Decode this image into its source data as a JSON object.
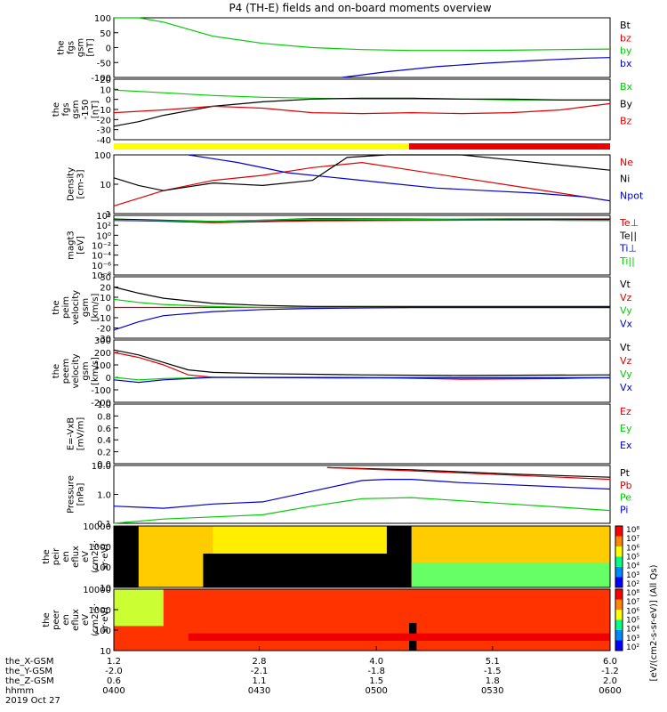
{
  "title": "P4 (TH-E) fields and on-board moments overview",
  "colors": {
    "black": "#000000",
    "red": "#e00000",
    "green": "#00cc00",
    "blue": "#0000cc",
    "yellow": "#ffff00",
    "bar_red": "#ee0000"
  },
  "chart_data": [
    {
      "type": "line",
      "id": "fgs",
      "ylabel": [
        "the",
        "fgs",
        "gsm",
        "[nT]"
      ],
      "yticks": [
        "100",
        "50",
        "0",
        "-50",
        "-100"
      ],
      "ylim": [
        -100,
        110
      ],
      "series": [
        {
          "name": "Bt",
          "color": "#000000",
          "x": [],
          "y": []
        },
        {
          "name": "bz",
          "color": "#e00000",
          "x": [],
          "y": []
        },
        {
          "name": "by",
          "color": "#00cc00",
          "x": [
            0,
            0.05,
            0.1,
            0.15,
            0.2,
            0.3,
            0.4,
            0.5,
            0.6,
            0.7,
            0.8,
            0.9,
            1.0
          ],
          "y": [
            170,
            120,
            95,
            70,
            45,
            20,
            5,
            -2,
            -5,
            -5,
            -4,
            -2,
            0
          ]
        },
        {
          "name": "bx",
          "color": "#0000cc",
          "x": [
            0.46,
            0.55,
            0.65,
            0.75,
            0.85,
            0.95,
            1.0
          ],
          "y": [
            -100,
            -80,
            -62,
            -50,
            -40,
            -32,
            -30
          ]
        }
      ]
    },
    {
      "type": "line",
      "id": "fgs_gsm",
      "ylabel": [
        "the",
        "fgs",
        "gsm",
        "-150",
        "[nT]"
      ],
      "yticks": [
        "20",
        "10",
        "0",
        "-10",
        "-20",
        "-30",
        "-40"
      ],
      "ylim": [
        -45,
        22
      ],
      "series": [
        {
          "name": "Bx",
          "color": "#00cc00",
          "x": [
            0,
            0.1,
            0.2,
            0.3,
            0.4,
            0.5,
            0.6,
            0.7,
            0.8,
            0.9,
            1.0
          ],
          "y": [
            10,
            7,
            4,
            2,
            1,
            0,
            0,
            0,
            -1,
            -1,
            -1
          ]
        },
        {
          "name": "By",
          "color": "#000000",
          "x": [
            0,
            0.05,
            0.1,
            0.2,
            0.3,
            0.4,
            0.5,
            0.6,
            0.7,
            0.8,
            0.9,
            1.0
          ],
          "y": [
            -30,
            -25,
            -18,
            -8,
            -3,
            0,
            1,
            1,
            0,
            0,
            -1,
            -1
          ]
        },
        {
          "name": "Bz",
          "color": "#e00000",
          "x": [
            0,
            0.1,
            0.2,
            0.3,
            0.4,
            0.5,
            0.6,
            0.7,
            0.8,
            0.9,
            1.0
          ],
          "y": [
            -15,
            -12,
            -8,
            -10,
            -15,
            -16,
            -15,
            -16,
            -15,
            -12,
            -5
          ]
        }
      ]
    },
    {
      "type": "line",
      "id": "density",
      "log": true,
      "ylabel": [
        "Density",
        "[cm-3]"
      ],
      "yticks": [
        "100",
        "10",
        "1"
      ],
      "ylim_log": [
        0,
        2.3
      ],
      "series": [
        {
          "name": "Ne",
          "color": "#e00000",
          "x": [
            0,
            0.05,
            0.1,
            0.2,
            0.3,
            0.4,
            0.5,
            0.6,
            0.7,
            0.8,
            0.9,
            1.0
          ],
          "y": [
            0.3,
            0.6,
            0.9,
            1.3,
            1.5,
            1.8,
            2.0,
            1.7,
            1.4,
            1.1,
            0.8,
            0.5
          ]
        },
        {
          "name": "Ni",
          "color": "#000000",
          "x": [
            0,
            0.05,
            0.1,
            0.2,
            0.3,
            0.4,
            0.47,
            0.55,
            0.6,
            0.7,
            0.8,
            0.9,
            1.0
          ],
          "y": [
            1.4,
            1.1,
            0.9,
            1.2,
            1.1,
            1.3,
            2.2,
            2.6,
            2.5,
            2.3,
            2.1,
            1.9,
            1.7
          ]
        },
        {
          "name": "Npot",
          "color": "#0000cc",
          "x": [
            0.15,
            0.25,
            0.35,
            0.45,
            0.55,
            0.65,
            0.75,
            0.85,
            0.95,
            1.0
          ],
          "y": [
            2.6,
            2.0,
            1.6,
            1.4,
            1.2,
            1.0,
            0.9,
            0.8,
            0.65,
            0.5
          ]
        }
      ]
    },
    {
      "type": "line",
      "id": "magt3",
      "log": true,
      "ylabel": [
        "magt3",
        "[eV]"
      ],
      "yticks": [
        "10⁴",
        "10²",
        "10⁰",
        "10⁻²",
        "10⁻⁴",
        "10⁻⁶",
        "10⁻⁸"
      ],
      "ylim_log": [
        -9,
        4
      ],
      "series": [
        {
          "name": "Te⊥",
          "color": "#e00000",
          "x": [
            0,
            0.2,
            0.4,
            0.6,
            0.8,
            1.0
          ],
          "y": [
            3.0,
            2.4,
            2.8,
            2.9,
            3.0,
            3.1
          ]
        },
        {
          "name": "Te||",
          "color": "#000000",
          "x": [
            0,
            0.2,
            0.4,
            0.6,
            0.8,
            1.0
          ],
          "y": [
            3.2,
            2.7,
            3.0,
            3.1,
            3.2,
            3.2
          ]
        },
        {
          "name": "Ti⊥",
          "color": "#0000cc",
          "x": [
            0,
            0.2,
            0.4,
            0.6,
            0.8,
            1.0
          ],
          "y": [
            2.9,
            2.6,
            3.3,
            3.2,
            3.0,
            2.9
          ]
        },
        {
          "name": "Ti||",
          "color": "#00cc00",
          "x": [
            0,
            0.2,
            0.4,
            0.6,
            0.8,
            1.0
          ],
          "y": [
            3.0,
            2.7,
            3.2,
            3.1,
            3.0,
            2.9
          ]
        }
      ]
    },
    {
      "type": "line",
      "id": "peim",
      "ylabel": [
        "the",
        "peim",
        "velocity",
        "gsm",
        "[km/s]"
      ],
      "yticks": [
        "30",
        "20",
        "10",
        "0",
        "-10",
        "-20",
        "-30"
      ],
      "ylim": [
        -30,
        30
      ],
      "series": [
        {
          "name": "Vt",
          "color": "#000000",
          "x": [
            0,
            0.05,
            0.1,
            0.2,
            0.3,
            0.4,
            0.6,
            0.8,
            1.0
          ],
          "y": [
            20,
            14,
            9,
            4,
            2,
            1,
            1,
            1,
            1
          ]
        },
        {
          "name": "Vz",
          "color": "#e00000",
          "x": [
            0,
            0.2,
            0.4,
            0.6,
            0.8,
            1.0
          ],
          "y": [
            0,
            0,
            0,
            0,
            0,
            0
          ]
        },
        {
          "name": "Vy",
          "color": "#00cc00",
          "x": [
            0,
            0.05,
            0.1,
            0.2,
            0.3,
            0.4,
            0.6,
            1.0
          ],
          "y": [
            8,
            5,
            3,
            1,
            0,
            0,
            0,
            0
          ]
        },
        {
          "name": "Vx",
          "color": "#0000cc",
          "x": [
            0,
            0.05,
            0.1,
            0.2,
            0.3,
            0.4,
            0.6,
            1.0
          ],
          "y": [
            -22,
            -14,
            -8,
            -4,
            -2,
            -1,
            0,
            0
          ]
        }
      ]
    },
    {
      "type": "line",
      "id": "peem",
      "ylabel": [
        "the",
        "peem",
        "velocity",
        "gsm",
        "[km/s]"
      ],
      "yticks": [
        "300",
        "200",
        "100",
        "0",
        "-100",
        "-200"
      ],
      "ylim": [
        -200,
        300
      ],
      "series": [
        {
          "name": "Vt",
          "color": "#000000",
          "x": [
            0,
            0.05,
            0.1,
            0.15,
            0.2,
            0.3,
            0.5,
            0.7,
            1.0
          ],
          "y": [
            220,
            180,
            120,
            60,
            40,
            30,
            20,
            15,
            20
          ]
        },
        {
          "name": "Vz",
          "color": "#e00000",
          "x": [
            0,
            0.05,
            0.1,
            0.15,
            0.2,
            0.5,
            0.7,
            0.9,
            1.0
          ],
          "y": [
            200,
            160,
            100,
            20,
            0,
            0,
            -15,
            -10,
            0
          ]
        },
        {
          "name": "Vy",
          "color": "#00cc00",
          "x": [
            0,
            0.05,
            0.1,
            0.2,
            0.5,
            1.0
          ],
          "y": [
            0,
            -20,
            -10,
            0,
            0,
            0
          ]
        },
        {
          "name": "Vx",
          "color": "#0000cc",
          "x": [
            0,
            0.05,
            0.1,
            0.2,
            0.5,
            1.0
          ],
          "y": [
            -20,
            -40,
            -20,
            0,
            -5,
            -5
          ]
        }
      ]
    },
    {
      "type": "line",
      "id": "exb",
      "ylabel": [
        "E=-VxB",
        "[mV/m]"
      ],
      "yticks": [
        "1.0",
        "0.8",
        "0.6",
        "0.4",
        "0.2",
        "0.0"
      ],
      "ylim": [
        0,
        1
      ],
      "series": [
        {
          "name": "Ez",
          "color": "#e00000",
          "x": [],
          "y": []
        },
        {
          "name": "Ey",
          "color": "#00cc00",
          "x": [],
          "y": []
        },
        {
          "name": "Ex",
          "color": "#0000cc",
          "x": [],
          "y": []
        }
      ]
    },
    {
      "type": "line",
      "id": "pressure",
      "log": true,
      "ylabel": [
        "Pressure",
        "[nPa]"
      ],
      "yticks": [
        "10.0",
        "1.0",
        "0.1"
      ],
      "ylim_log": [
        -1.3,
        1.4
      ],
      "series": [
        {
          "name": "Pt",
          "color": "#000000",
          "x": [
            0.43,
            0.6,
            0.8,
            1.0
          ],
          "y": [
            1.3,
            1.2,
            1.0,
            0.85
          ]
        },
        {
          "name": "Pb",
          "color": "#e00000",
          "x": [
            0.43,
            0.6,
            0.8,
            1.0
          ],
          "y": [
            1.3,
            1.15,
            0.95,
            0.75
          ]
        },
        {
          "name": "Pe",
          "color": "#00cc00",
          "x": [
            0,
            0.1,
            0.2,
            0.3,
            0.4,
            0.5,
            0.6,
            0.7,
            0.8,
            0.9,
            1.0
          ],
          "y": [
            -1.3,
            -1.1,
            -1.0,
            -0.9,
            -0.5,
            -0.15,
            -0.1,
            -0.25,
            -0.4,
            -0.55,
            -0.7
          ]
        },
        {
          "name": "Pi",
          "color": "#0000cc",
          "x": [
            0,
            0.05,
            0.1,
            0.2,
            0.3,
            0.4,
            0.5,
            0.55,
            0.6,
            0.7,
            0.8,
            0.9,
            1.0
          ],
          "y": [
            -0.5,
            -0.55,
            -0.6,
            -0.4,
            -0.3,
            0.2,
            0.7,
            0.75,
            0.75,
            0.6,
            0.5,
            0.4,
            0.3
          ]
        }
      ]
    },
    {
      "type": "heatmap",
      "id": "peir",
      "ylabel": [
        "the",
        "peir",
        "en",
        "eflux",
        "eV",
        "(cm2·s·",
        "sr·eV)"
      ],
      "yticks": [
        "10000",
        "1000",
        "100",
        "10"
      ]
    },
    {
      "type": "heatmap",
      "id": "peer",
      "ylabel": [
        "the",
        "peer",
        "en",
        "eflux",
        "eV",
        "(cm2·s·",
        "sr·eV)"
      ],
      "yticks": [
        "10000",
        "1000",
        "100",
        "10"
      ]
    }
  ],
  "colorbar": {
    "ticks": [
      "10⁸",
      "10⁷",
      "10⁶",
      "10⁵",
      "10⁴",
      "10³",
      "10²"
    ],
    "label": "[eV/(cm2-s-sr-eV)] (All Qs)"
  },
  "xaxis": {
    "rows": [
      {
        "label": "the_X-GSM",
        "values": [
          "1.2",
          "2.8",
          "4.0",
          "5.1",
          "6.0"
        ]
      },
      {
        "label": "the_Y-GSM",
        "values": [
          "-2.0",
          "-2.1",
          "-1.8",
          "-1.5",
          "-1.2"
        ]
      },
      {
        "label": "the_Z-GSM",
        "values": [
          "0.6",
          "1.1",
          "1.5",
          "1.8",
          "2.0"
        ]
      },
      {
        "label": "hhmm",
        "values": [
          "0400",
          "0430",
          "0500",
          "0530",
          "0600"
        ]
      }
    ],
    "date": "2019 Oct 27"
  }
}
